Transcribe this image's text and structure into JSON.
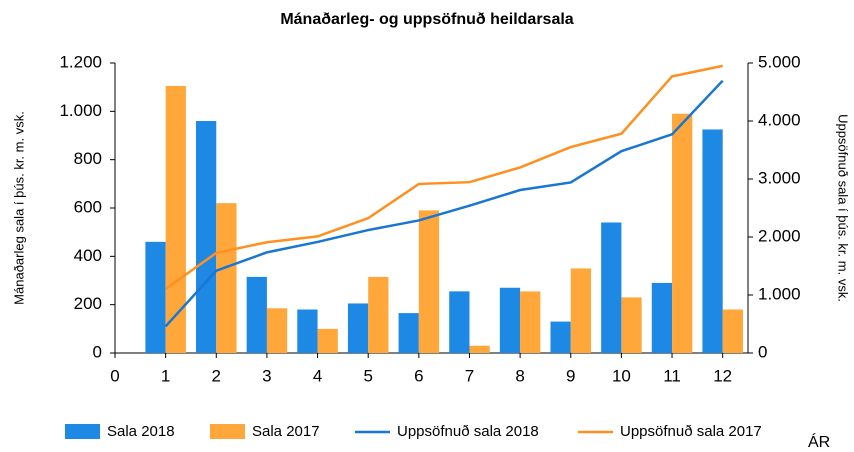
{
  "chart_data": {
    "type": "bar",
    "title": "Mánaðarleg- og uppsöfnuð heildarsala",
    "ylabel": "Mánaðarleg sala í þús. kr. m. vsk.",
    "y2label": "Uppsöfnuð sala í þús. kr. m. vsk.",
    "xlabel": "ÁR",
    "x": [
      1,
      2,
      3,
      4,
      5,
      6,
      7,
      8,
      9,
      10,
      11,
      12
    ],
    "xlim": [
      0,
      12.5
    ],
    "xticks": [
      0,
      1,
      2,
      3,
      4,
      5,
      6,
      7,
      8,
      9,
      10,
      11,
      12
    ],
    "ylim": [
      0,
      1200
    ],
    "yticks": [
      0,
      200,
      400,
      600,
      800,
      {
        "value": 1000,
        "label": "1.000"
      },
      {
        "value": 1200,
        "label": "1.200"
      }
    ],
    "y2lim": [
      0,
      5000
    ],
    "y2ticks": [
      0,
      {
        "value": 1000,
        "label": "1.000"
      },
      {
        "value": 2000,
        "label": "2.000"
      },
      {
        "value": 3000,
        "label": "3.000"
      },
      {
        "value": 4000,
        "label": "4.000"
      },
      {
        "value": 5000,
        "label": "5.000"
      }
    ],
    "grid": false,
    "legend": "bottom",
    "series": [
      {
        "name": "Sala 2018",
        "type": "bar",
        "color": "#1e88e5",
        "values": [
          460,
          960,
          315,
          180,
          205,
          165,
          255,
          270,
          130,
          540,
          290,
          925
        ]
      },
      {
        "name": "Sala 2017",
        "type": "bar",
        "color": "#ffa73a",
        "values": [
          1105,
          620,
          185,
          100,
          315,
          590,
          30,
          255,
          350,
          230,
          990,
          180
        ]
      },
      {
        "name": "Uppsöfnuð sala 2018",
        "type": "line",
        "axis": "y2",
        "color": "#1976d2",
        "values": [
          460,
          1420,
          1735,
          1915,
          2120,
          2285,
          2540,
          2810,
          2940,
          3480,
          3770,
          4695
        ]
      },
      {
        "name": "Uppsöfnuð sala 2017",
        "type": "line",
        "axis": "y2",
        "color": "#ff8f1f",
        "values": [
          1105,
          1725,
          1910,
          2010,
          2325,
          2915,
          2945,
          3200,
          3550,
          3780,
          4770,
          4950
        ]
      }
    ]
  }
}
